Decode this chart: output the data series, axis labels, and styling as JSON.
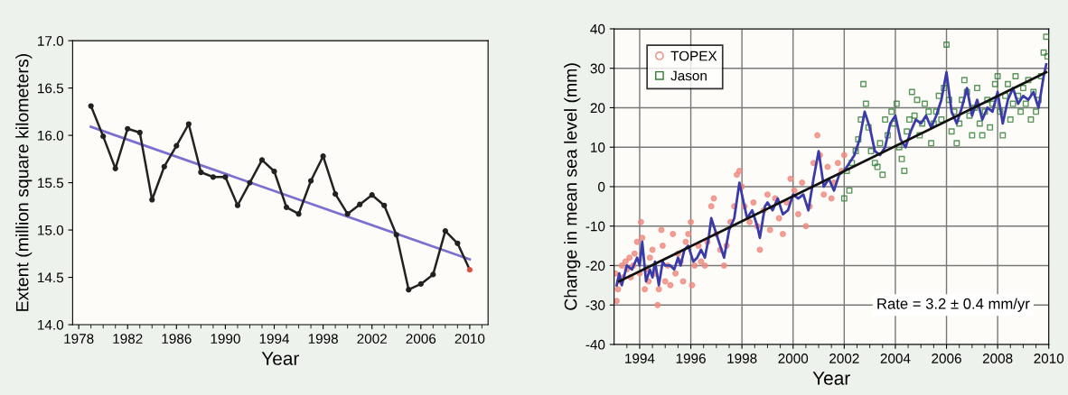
{
  "chart_data": [
    {
      "type": "line",
      "xlabel": "Year",
      "ylabel": "Extent (million square kilometers)",
      "xlim": [
        1977.5,
        2011.5
      ],
      "ylim": [
        14.0,
        17.0
      ],
      "xticks": [
        1978,
        {
          "value": 1979,
          "label": null
        },
        {
          "value": 1980,
          "label": null
        },
        {
          "value": 1981,
          "label": null
        },
        1982,
        {
          "value": 1983,
          "label": null
        },
        {
          "value": 1984,
          "label": null
        },
        {
          "value": 1985,
          "label": null
        },
        1986,
        {
          "value": 1987,
          "label": null
        },
        {
          "value": 1988,
          "label": null
        },
        {
          "value": 1989,
          "label": null
        },
        1990,
        {
          "value": 1991,
          "label": null
        },
        {
          "value": 1992,
          "label": null
        },
        {
          "value": 1993,
          "label": null
        },
        1994,
        {
          "value": 1995,
          "label": null
        },
        {
          "value": 1996,
          "label": null
        },
        {
          "value": 1997,
          "label": null
        },
        1998,
        {
          "value": 1999,
          "label": null
        },
        {
          "value": 2000,
          "label": null
        },
        {
          "value": 2001,
          "label": null
        },
        2002,
        {
          "value": 2003,
          "label": null
        },
        {
          "value": 2004,
          "label": null
        },
        {
          "value": 2005,
          "label": null
        },
        2006,
        {
          "value": 2007,
          "label": null
        },
        {
          "value": 2008,
          "label": null
        },
        {
          "value": 2009,
          "label": null
        },
        2010,
        {
          "value": 2011,
          "label": null
        }
      ],
      "yticks": [
        {
          "value": 14.0,
          "label": "14.0"
        },
        14.5,
        {
          "value": 15.0,
          "label": "15.0"
        },
        15.5,
        {
          "value": 16.0,
          "label": "16.0"
        },
        16.5,
        {
          "value": 17.0,
          "label": "17.0"
        }
      ],
      "grid": false,
      "legend": false,
      "series": [
        {
          "color": "#7b6fd0",
          "marker": "none",
          "x": [
            1979,
            2010
          ],
          "values": [
            16.09,
            14.69
          ]
        },
        {
          "color": "#222222",
          "marker": "circle",
          "colors": [
            "#222222",
            "#222222",
            "#222222",
            "#222222",
            "#222222",
            "#222222",
            "#222222",
            "#222222",
            "#222222",
            "#222222",
            "#222222",
            "#222222",
            "#222222",
            "#222222",
            "#222222",
            "#222222",
            "#222222",
            "#222222",
            "#222222",
            "#222222",
            "#222222",
            "#222222",
            "#222222",
            "#222222",
            "#222222",
            "#222222",
            "#222222",
            "#222222",
            "#222222",
            "#222222",
            "#222222",
            "#e05040"
          ],
          "x": [
            1979,
            1980,
            1981,
            1982,
            1983,
            1984,
            1985,
            1986,
            1987,
            1988,
            1989,
            1990,
            1991,
            1992,
            1993,
            1994,
            1995,
            1996,
            1997,
            1998,
            1999,
            2000,
            2001,
            2002,
            2003,
            2004,
            2005,
            2006,
            2007,
            2008,
            2009,
            2010
          ],
          "values": [
            16.31,
            15.99,
            15.65,
            16.07,
            16.03,
            15.32,
            15.67,
            15.89,
            16.12,
            15.61,
            15.56,
            15.56,
            15.26,
            15.5,
            15.74,
            15.62,
            15.24,
            15.17,
            15.52,
            15.78,
            15.38,
            15.17,
            15.27,
            15.37,
            15.26,
            14.95,
            14.37,
            14.43,
            14.53,
            14.99,
            14.86,
            14.58
          ]
        }
      ]
    },
    {
      "type": "scatter",
      "xlabel": "Year",
      "ylabel": "Change in mean sea level (mm)",
      "xlim": [
        1993,
        2010
      ],
      "ylim": [
        -40,
        40
      ],
      "xticks": [
        {
          "value": 1993.5,
          "label": null
        },
        1994,
        {
          "value": 1994.5,
          "label": null
        },
        {
          "value": 1995,
          "label": null
        },
        {
          "value": 1995.5,
          "label": null
        },
        1996,
        {
          "value": 1996.5,
          "label": null
        },
        {
          "value": 1997,
          "label": null
        },
        {
          "value": 1997.5,
          "label": null
        },
        1998,
        {
          "value": 1998.5,
          "label": null
        },
        {
          "value": 1999,
          "label": null
        },
        {
          "value": 1999.5,
          "label": null
        },
        2000,
        {
          "value": 2000.5,
          "label": null
        },
        {
          "value": 2001,
          "label": null
        },
        {
          "value": 2001.5,
          "label": null
        },
        2002,
        {
          "value": 2002.5,
          "label": null
        },
        {
          "value": 2003,
          "label": null
        },
        {
          "value": 2003.5,
          "label": null
        },
        2004,
        {
          "value": 2004.5,
          "label": null
        },
        {
          "value": 2005,
          "label": null
        },
        {
          "value": 2005.5,
          "label": null
        },
        2006,
        {
          "value": 2006.5,
          "label": null
        },
        {
          "value": 2007,
          "label": null
        },
        {
          "value": 2007.5,
          "label": null
        },
        2008,
        {
          "value": 2008.5,
          "label": null
        },
        {
          "value": 2009,
          "label": null
        },
        {
          "value": 2009.5,
          "label": null
        },
        2010
      ],
      "yticks": [
        -40,
        -30,
        -20,
        -10,
        0,
        10,
        20,
        30,
        40
      ],
      "grid": true,
      "legend": "top left",
      "annotations": [
        "Rate = 3.2 ± 0.4 mm/yr"
      ],
      "series": [
        {
          "name": "TOPEX",
          "color": "#f08a80",
          "marker": "circle",
          "x": [
            1993.05,
            1993.1,
            1993.15,
            1993.2,
            1993.3,
            1993.35,
            1993.45,
            1993.5,
            1993.6,
            1993.65,
            1993.75,
            1993.8,
            1993.9,
            1994.0,
            1994.05,
            1994.1,
            1994.2,
            1994.25,
            1994.35,
            1994.4,
            1994.5,
            1994.6,
            1994.7,
            1994.75,
            1994.85,
            1994.9,
            1995.0,
            1995.1,
            1995.2,
            1995.3,
            1995.4,
            1995.5,
            1995.6,
            1995.7,
            1995.8,
            1995.9,
            1996.0,
            1996.05,
            1996.15,
            1996.3,
            1996.4,
            1996.55,
            1996.65,
            1996.8,
            1996.9,
            1997.0,
            1997.15,
            1997.3,
            1997.4,
            1997.55,
            1997.7,
            1997.8,
            1997.9,
            1998.0,
            1998.1,
            1998.3,
            1998.45,
            1998.6,
            1998.7,
            1998.85,
            1999.0,
            1999.1,
            1999.3,
            1999.45,
            1999.6,
            1999.75,
            1999.9,
            2000.05,
            2000.2,
            2000.35,
            2000.5,
            2000.65,
            2000.8,
            2000.95,
            2001.05,
            2001.2,
            2001.35,
            2001.5,
            2001.6,
            2001.75,
            2001.9,
            2002.0
          ],
          "values": [
            -22,
            -29,
            -26,
            -24,
            -20,
            -23,
            -19,
            -21,
            -18,
            -23,
            -20,
            -17,
            -14,
            -22,
            -9,
            -13,
            -26,
            -21,
            -24,
            -18,
            -16,
            -22,
            -30,
            -26,
            -11,
            -15,
            -24,
            -20,
            -25,
            -12,
            -22,
            -17,
            -19,
            -24,
            -14,
            -12,
            -9,
            -25,
            -20,
            -15,
            -19,
            -20,
            -14,
            -5,
            -3,
            -12,
            -16,
            -20,
            -15,
            -9,
            -5,
            3,
            4,
            0,
            -5,
            -9,
            -4,
            -10,
            -16,
            -6,
            -2,
            -11,
            -3,
            -8,
            -12,
            -4,
            2,
            -1,
            -7,
            1,
            -10,
            -5,
            6,
            13,
            8,
            -2,
            5,
            -3,
            1,
            6,
            4,
            8
          ]
        },
        {
          "name": "Jason",
          "color": "#2e7d32",
          "marker": "square",
          "x": [
            2002.0,
            2002.1,
            2002.2,
            2002.3,
            2002.45,
            2002.55,
            2002.65,
            2002.75,
            2002.85,
            2002.95,
            2003.05,
            2003.2,
            2003.3,
            2003.4,
            2003.5,
            2003.6,
            2003.7,
            2003.85,
            2003.95,
            2004.05,
            2004.15,
            2004.25,
            2004.35,
            2004.45,
            2004.55,
            2004.65,
            2004.75,
            2004.85,
            2004.95,
            2005.05,
            2005.15,
            2005.3,
            2005.4,
            2005.5,
            2005.6,
            2005.7,
            2005.8,
            2005.9,
            2006.0,
            2006.1,
            2006.2,
            2006.3,
            2006.4,
            2006.5,
            2006.6,
            2006.7,
            2006.8,
            2006.9,
            2007.0,
            2007.1,
            2007.2,
            2007.3,
            2007.4,
            2007.5,
            2007.6,
            2007.7,
            2007.8,
            2007.9,
            2008.0,
            2008.1,
            2008.2,
            2008.3,
            2008.4,
            2008.5,
            2008.6,
            2008.7,
            2008.8,
            2008.9,
            2009.0,
            2009.1,
            2009.2,
            2009.3,
            2009.4,
            2009.5,
            2009.6,
            2009.7,
            2009.8,
            2009.9,
            2009.95
          ],
          "values": [
            -3,
            4,
            -1,
            6,
            9,
            12,
            17,
            26,
            21,
            15,
            9,
            6,
            5,
            11,
            3,
            17,
            13,
            19,
            16,
            21,
            10,
            7,
            4,
            14,
            17,
            24,
            18,
            22,
            13,
            16,
            21,
            19,
            11,
            16,
            19,
            23,
            17,
            25,
            36,
            22,
            14,
            19,
            11,
            16,
            22,
            27,
            24,
            18,
            13,
            20,
            25,
            16,
            13,
            19,
            22,
            15,
            21,
            26,
            28,
            19,
            13,
            23,
            26,
            17,
            21,
            28,
            23,
            19,
            25,
            21,
            27,
            17,
            24,
            19,
            22,
            28,
            34,
            38,
            33
          ]
        },
        {
          "type": "line",
          "color": "#3a3aa8",
          "marker": "none",
          "x": [
            1993.1,
            1993.2,
            1993.3,
            1993.5,
            1993.7,
            1993.9,
            1994.0,
            1994.1,
            1994.25,
            1994.4,
            1994.5,
            1994.6,
            1994.75,
            1994.9,
            1995.0,
            1995.2,
            1995.35,
            1995.5,
            1995.6,
            1995.75,
            1995.9,
            1996.0,
            1996.1,
            1996.25,
            1996.4,
            1996.55,
            1996.7,
            1996.8,
            1996.9,
            1997.1,
            1997.3,
            1997.5,
            1997.7,
            1997.9,
            1998.0,
            1998.2,
            1998.4,
            1998.6,
            1998.7,
            1998.9,
            1999.0,
            1999.2,
            1999.4,
            1999.6,
            1999.8,
            2000.0,
            2000.2,
            2000.4,
            2000.6,
            2000.8,
            2001.0,
            2001.2,
            2001.4,
            2001.6,
            2001.8,
            2002.0,
            2002.2,
            2002.4,
            2002.6,
            2002.8,
            2003.0,
            2003.2,
            2003.4,
            2003.6,
            2003.8,
            2004.0,
            2004.2,
            2004.4,
            2004.6,
            2004.8,
            2005.0,
            2005.2,
            2005.4,
            2005.6,
            2005.8,
            2006.0,
            2006.2,
            2006.4,
            2006.6,
            2006.8,
            2007.0,
            2007.2,
            2007.4,
            2007.6,
            2007.8,
            2008.0,
            2008.2,
            2008.4,
            2008.6,
            2008.8,
            2009.0,
            2009.2,
            2009.4,
            2009.6,
            2009.8,
            2009.9
          ],
          "values": [
            -25,
            -22,
            -25,
            -20,
            -21,
            -18,
            -20,
            -14,
            -24,
            -21,
            -23,
            -19,
            -25,
            -19,
            -20,
            -20,
            -21,
            -18,
            -20,
            -16,
            -15,
            -17,
            -19,
            -18,
            -16,
            -18,
            -13,
            -8,
            -10,
            -14,
            -18,
            -11,
            -8,
            1,
            -2,
            -8,
            -6,
            -10,
            -13,
            -5,
            -4,
            -6,
            -3,
            -7,
            -6,
            -2,
            -3,
            -2,
            -6,
            2,
            9,
            0,
            2,
            -1,
            3,
            4,
            6,
            8,
            12,
            19,
            15,
            9,
            8,
            10,
            16,
            18,
            12,
            10,
            14,
            17,
            16,
            18,
            15,
            18,
            22,
            29,
            19,
            16,
            20,
            25,
            18,
            22,
            17,
            20,
            19,
            24,
            16,
            22,
            25,
            21,
            23,
            22,
            24,
            20,
            28,
            31
          ]
        },
        {
          "type": "line",
          "color": "#111111",
          "marker": "none",
          "x": [
            1993.2,
            2009.9
          ],
          "values": [
            -24,
            29
          ]
        }
      ]
    }
  ]
}
